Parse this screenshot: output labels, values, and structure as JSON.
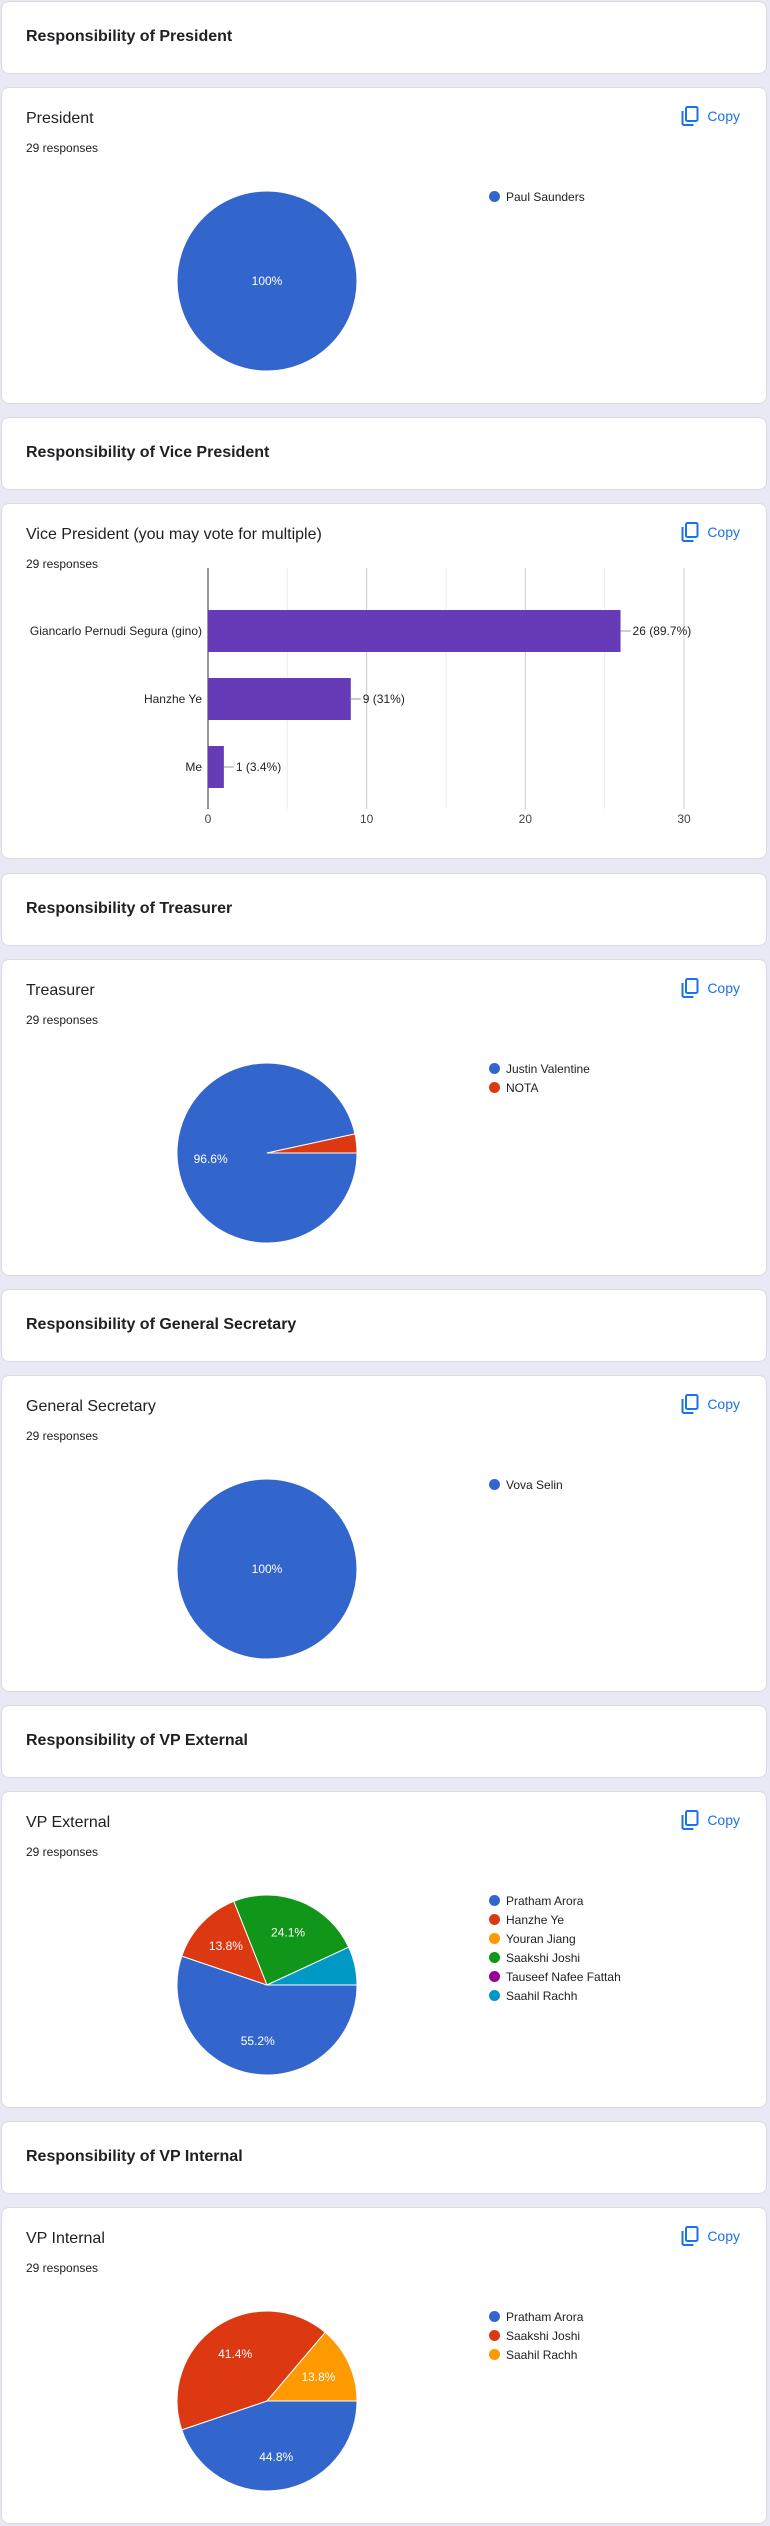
{
  "copy_label": "Copy",
  "sections": [
    {
      "heading": "Responsibility of President",
      "question": {
        "title": "President",
        "responses": "29 responses",
        "chart_data": {
          "type": "pie",
          "categories": [
            "Paul Saunders"
          ],
          "values": [
            100
          ],
          "slice_labels": [
            "100%"
          ],
          "colors": [
            "#3366cc"
          ]
        }
      }
    },
    {
      "heading": "Responsibility of Vice President",
      "question": {
        "title": "Vice President (you may vote for multiple)",
        "responses": "29 responses",
        "chart_data": {
          "type": "bar",
          "orientation": "horizontal",
          "categories": [
            "Giancarlo Pernudi Segura (gino)",
            "Hanzhe Ye",
            "Me"
          ],
          "values": [
            26,
            9,
            1
          ],
          "data_labels": [
            "26 (89.7%)",
            "9 (31%)",
            "1 (3.4%)"
          ],
          "xlim": [
            0,
            30
          ],
          "xticks": [
            0,
            10,
            20,
            30
          ],
          "color": "#673ab7",
          "grid": true
        }
      }
    },
    {
      "heading": "Responsibility of Treasurer",
      "question": {
        "title": "Treasurer",
        "responses": "29 responses",
        "chart_data": {
          "type": "pie",
          "categories": [
            "Justin Valentine",
            "NOTA"
          ],
          "values": [
            96.6,
            3.4
          ],
          "slice_labels": [
            "96.6%",
            ""
          ],
          "colors": [
            "#3366cc",
            "#dc3912"
          ]
        }
      }
    },
    {
      "heading": "Responsibility of General Secretary",
      "question": {
        "title": "General Secretary",
        "responses": "29 responses",
        "chart_data": {
          "type": "pie",
          "categories": [
            "Vova Selin"
          ],
          "values": [
            100
          ],
          "slice_labels": [
            "100%"
          ],
          "colors": [
            "#3366cc"
          ]
        }
      }
    },
    {
      "heading": "Responsibility of VP External",
      "question": {
        "title": "VP External",
        "responses": "29 responses",
        "chart_data": {
          "type": "pie",
          "categories": [
            "Pratham Arora",
            "Hanzhe Ye",
            "Youran Jiang",
            "Saakshi Joshi",
            "Tauseef Nafee Fattah",
            "Saahil Rachh"
          ],
          "values": [
            55.2,
            13.8,
            0,
            24.1,
            0,
            6.9
          ],
          "slice_labels": [
            "55.2%",
            "13.8%",
            "",
            "24.1%",
            "",
            ""
          ],
          "colors": [
            "#3366cc",
            "#dc3912",
            "#ff9900",
            "#109618",
            "#990099",
            "#0099c6"
          ]
        }
      }
    },
    {
      "heading": "Responsibility of VP Internal",
      "question": {
        "title": "VP Internal",
        "responses": "29 responses",
        "chart_data": {
          "type": "pie",
          "categories": [
            "Pratham Arora",
            "Saakshi Joshi",
            "Saahil Rachh"
          ],
          "values": [
            44.8,
            41.4,
            13.8
          ],
          "slice_labels": [
            "44.8%",
            "41.4%",
            "13.8%"
          ],
          "colors": [
            "#3366cc",
            "#dc3912",
            "#ff9900"
          ]
        }
      }
    }
  ]
}
